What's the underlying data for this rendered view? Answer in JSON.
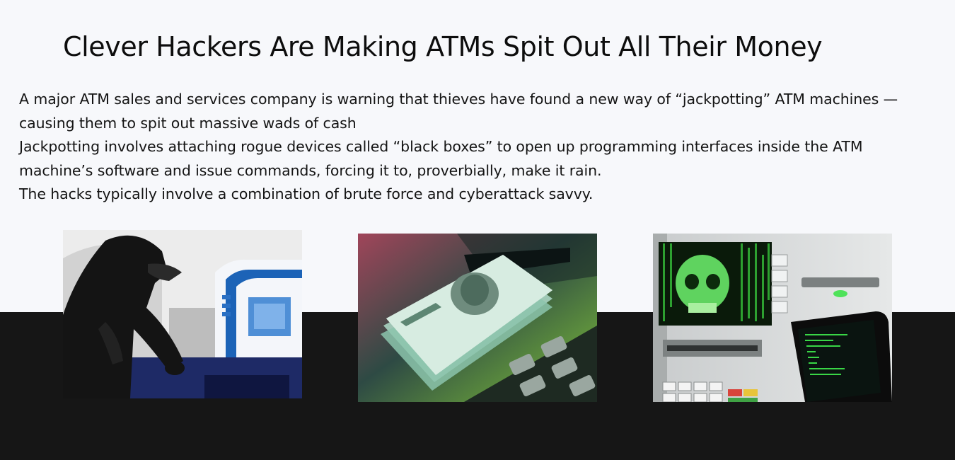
{
  "title": "Clever Hackers Are Making ATMs Spit Out All Their Money",
  "paragraphs": [
    "A major ATM sales and services company is warning that thieves have found a new way of “jackpotting” ATM machines — causing them to spit out massive wads of cash",
    "Jackpotting involves attaching rogue devices called “black boxes” to open up programming interfaces inside the ATM machine’s software and issue commands, forcing it to, proverbially, make it rain.",
    "The hacks typically involve a combination of brute force and cyberattack savvy."
  ],
  "colors": {
    "background": "#f7f8fb",
    "band": "#161616",
    "text": "#141414"
  },
  "images": [
    {
      "name": "hooded-thief-at-atm-illustration"
    },
    {
      "name": "cash-dispensing-from-atm-photo"
    },
    {
      "name": "hacked-atm-skull-screen-photo"
    }
  ]
}
